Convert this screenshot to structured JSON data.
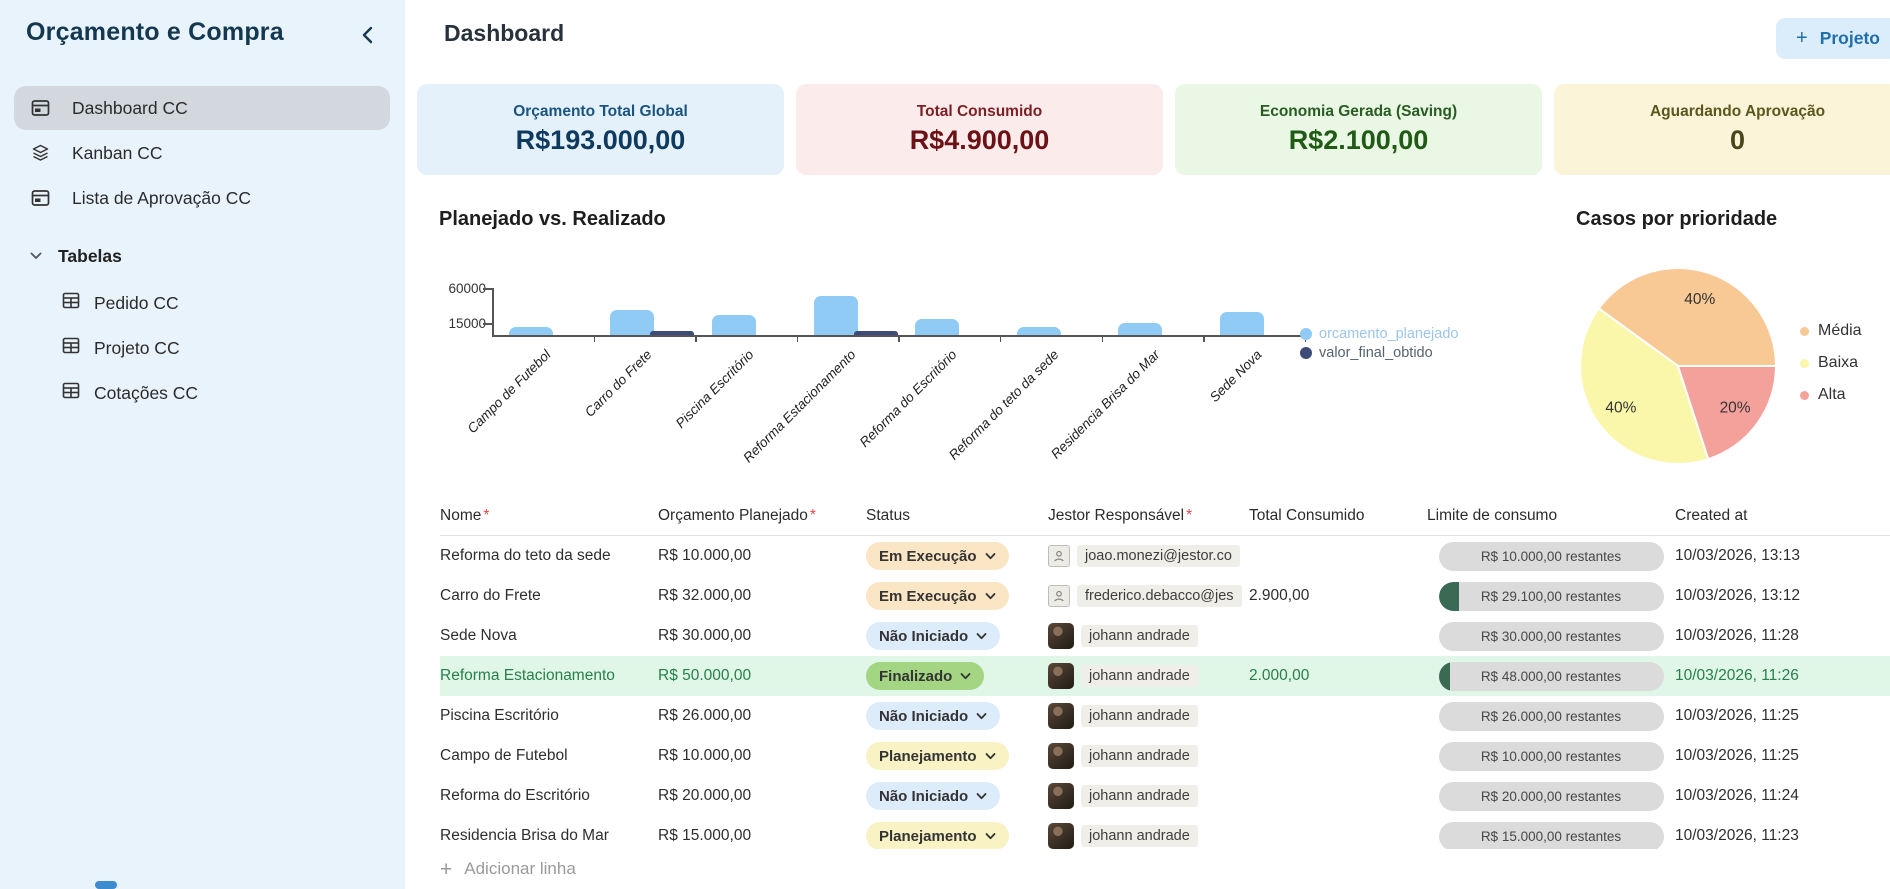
{
  "sidebar": {
    "title": "Orçamento e Compra",
    "items": [
      {
        "label": "Dashboard CC",
        "icon": "browser-icon",
        "active": true
      },
      {
        "label": "Kanban CC",
        "icon": "layers-icon",
        "active": false
      },
      {
        "label": "Lista de Aprovação CC",
        "icon": "browser-icon",
        "active": false
      }
    ],
    "section_label": "Tabelas",
    "section_items": [
      {
        "label": "Pedido CC",
        "icon": "table-icon"
      },
      {
        "label": "Projeto CC",
        "icon": "table-icon"
      },
      {
        "label": "Cotações CC",
        "icon": "table-icon"
      }
    ]
  },
  "header": {
    "title": "Dashboard",
    "plus_icon": "+",
    "new_project_label": "Projeto"
  },
  "stat_cards": [
    {
      "label": "Orçamento Total Global",
      "value": "R$193.000,00",
      "bg": "#E4F1FA",
      "label_color": "#1A5480",
      "value_color": "#0F3A60"
    },
    {
      "label": "Total Consumido",
      "value": "R$4.900,00",
      "bg": "#FBECEB",
      "label_color": "#7D1F24",
      "value_color": "#6D1116"
    },
    {
      "label": "Economia Gerada (Saving)",
      "value": "R$2.100,00",
      "bg": "#E9F7E4",
      "label_color": "#285C22",
      "value_color": "#205B16"
    },
    {
      "label": "Aguardando Aprovação",
      "value": "0",
      "bg": "#FBF4D8",
      "label_color": "#5C561E",
      "value_color": "#4A451B"
    }
  ],
  "chart_data": [
    {
      "type": "bar",
      "title": "Planejado vs. Realizado",
      "categories": [
        "Campo de Futebol",
        "Carro do Frete",
        "Piscina Escritório",
        "Reforma Estacionamento",
        "Reforma do Escritório",
        "Reforma do teto da sede",
        "Residencia Brisa do Mar",
        "Sede Nova"
      ],
      "series": [
        {
          "name": "orcamento_planejado",
          "color": "#8FCBF4",
          "values": [
            10000,
            32000,
            26000,
            50000,
            20000,
            10000,
            15000,
            30000
          ]
        },
        {
          "name": "valor_final_obtido",
          "color": "#3C4B7A",
          "values": [
            0,
            2900,
            0,
            2000,
            0,
            0,
            0,
            0
          ]
        }
      ],
      "yticks": [
        15000,
        60000
      ],
      "ylim": [
        0,
        62000
      ],
      "grid": false,
      "legend_position": "right"
    },
    {
      "type": "pie",
      "title": "Casos por prioridade",
      "slices": [
        {
          "label": "Média",
          "value": 40,
          "text": "40%",
          "color": "#F8C995",
          "start": 216,
          "end": 360
        },
        {
          "label": "Baixa",
          "value": 40,
          "text": "40%",
          "color": "#FAF7AB",
          "start": 72,
          "end": 216
        },
        {
          "label": "Alta",
          "value": 20,
          "text": "20%",
          "color": "#F5A19B",
          "start": 0,
          "end": 72
        }
      ],
      "legend_position": "right"
    }
  ],
  "table": {
    "required_marker": "*",
    "columns": [
      {
        "label": "Nome",
        "required": true
      },
      {
        "label": "Orçamento Planejado",
        "required": true
      },
      {
        "label": "Status",
        "required": false
      },
      {
        "label": "Jestor Responsável",
        "required": true
      },
      {
        "label": "Total Consumido",
        "required": false
      },
      {
        "label": "Limite de consumo",
        "required": false
      },
      {
        "label": "Created at",
        "required": false
      }
    ],
    "status_styles": {
      "Em Execução": "#FAE5C5",
      "Não Iniciado": "#DDECFB",
      "Finalizado": "#A4D583",
      "Planejamento": "#F9F2C5"
    },
    "rows": [
      {
        "nome": "Reforma do teto da sede",
        "orcamento": "R$ 10.000,00",
        "status": "Em Execução",
        "avatar": "icon",
        "responsavel": "joao.monezi@jestor.co",
        "consumido": "",
        "limite": "R$ 10.000,00 restantes",
        "progress_pct": 0,
        "created": "10/03/2026, 13:13",
        "highlight": false
      },
      {
        "nome": "Carro do Frete",
        "orcamento": "R$ 32.000,00",
        "status": "Em Execução",
        "avatar": "icon",
        "responsavel": "frederico.debacco@jes",
        "consumido": "2.900,00",
        "limite": "R$ 29.100,00 restantes",
        "progress_pct": 9,
        "created": "10/03/2026, 13:12",
        "highlight": false
      },
      {
        "nome": "Sede Nova",
        "orcamento": "R$ 30.000,00",
        "status": "Não Iniciado",
        "avatar": "photo",
        "responsavel": "johann andrade",
        "consumido": "",
        "limite": "R$ 30.000,00 restantes",
        "progress_pct": 0,
        "created": "10/03/2026, 11:28",
        "highlight": false
      },
      {
        "nome": "Reforma Estacionamento",
        "orcamento": "R$ 50.000,00",
        "status": "Finalizado",
        "avatar": "photo",
        "responsavel": "johann andrade",
        "consumido": "2.000,00",
        "limite": "R$ 48.000,00 restantes",
        "progress_pct": 5,
        "created": "10/03/2026, 11:26",
        "highlight": true
      },
      {
        "nome": "Piscina Escritório",
        "orcamento": "R$ 26.000,00",
        "status": "Não Iniciado",
        "avatar": "photo",
        "responsavel": "johann andrade",
        "consumido": "",
        "limite": "R$ 26.000,00 restantes",
        "progress_pct": 0,
        "created": "10/03/2026, 11:25",
        "highlight": false
      },
      {
        "nome": "Campo de Futebol",
        "orcamento": "R$ 10.000,00",
        "status": "Planejamento",
        "avatar": "photo",
        "responsavel": "johann andrade",
        "consumido": "",
        "limite": "R$ 10.000,00 restantes",
        "progress_pct": 0,
        "created": "10/03/2026, 11:25",
        "highlight": false
      },
      {
        "nome": "Reforma do Escritório",
        "orcamento": "R$ 20.000,00",
        "status": "Não Iniciado",
        "avatar": "photo",
        "responsavel": "johann andrade",
        "consumido": "",
        "limite": "R$ 20.000,00 restantes",
        "progress_pct": 0,
        "created": "10/03/2026, 11:24",
        "highlight": false
      },
      {
        "nome": "Residencia Brisa do Mar",
        "orcamento": "R$ 15.000,00",
        "status": "Planejamento",
        "avatar": "photo",
        "responsavel": "johann andrade",
        "consumido": "",
        "limite": "R$ 15.000,00 restantes",
        "progress_pct": 0,
        "created": "10/03/2026, 11:23",
        "highlight": false
      }
    ]
  },
  "footer": {
    "plus_icon": "+",
    "add_row_label": "Adicionar linha"
  }
}
